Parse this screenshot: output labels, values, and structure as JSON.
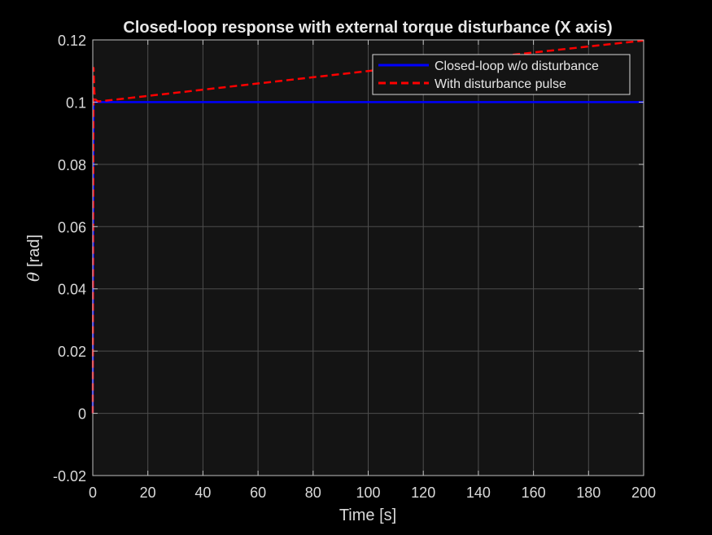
{
  "chart_data": {
    "type": "line",
    "title": "Closed-loop response with external torque disturbance (X axis)",
    "xlabel": "Time [s]",
    "ylabel_symbol": "θ",
    "ylabel_unit": "[rad]",
    "xlim": [
      0,
      200
    ],
    "ylim": [
      -0.02,
      0.12
    ],
    "xticks": [
      0,
      20,
      40,
      60,
      80,
      100,
      120,
      140,
      160,
      180,
      200
    ],
    "yticks": [
      -0.02,
      0,
      0.02,
      0.04,
      0.06,
      0.08,
      0.1,
      0.12
    ],
    "ytick_labels": [
      "-0.02",
      "0",
      "0.02",
      "0.04",
      "0.06",
      "0.08",
      "0.1",
      "0.12"
    ],
    "grid": true,
    "legend_position": "top-right",
    "colors": {
      "figure_bg": "#000000",
      "axes_bg": "#141414",
      "grid": "#4d4d4d",
      "axis": "#bfbfbf"
    },
    "series": [
      {
        "name": "Closed-loop w/o disturbance",
        "color": "#0000ff",
        "style": "solid",
        "x": [
          0,
          0.3,
          0.6,
          1,
          2,
          5,
          10,
          50,
          100,
          150,
          200
        ],
        "y": [
          0,
          0.1,
          0.1,
          0.1,
          0.1,
          0.1,
          0.1,
          0.1,
          0.1,
          0.1,
          0.1
        ]
      },
      {
        "name": "With disturbance pulse",
        "color": "#ff0000",
        "style": "dashed",
        "x": [
          0,
          0.3,
          0.6,
          1,
          2,
          5,
          10,
          50,
          100,
          150,
          200
        ],
        "y": [
          0,
          0.111,
          0.103,
          0.1008,
          0.1002,
          0.1005,
          0.101,
          0.105,
          0.11,
          0.115,
          0.1198
        ]
      }
    ]
  }
}
